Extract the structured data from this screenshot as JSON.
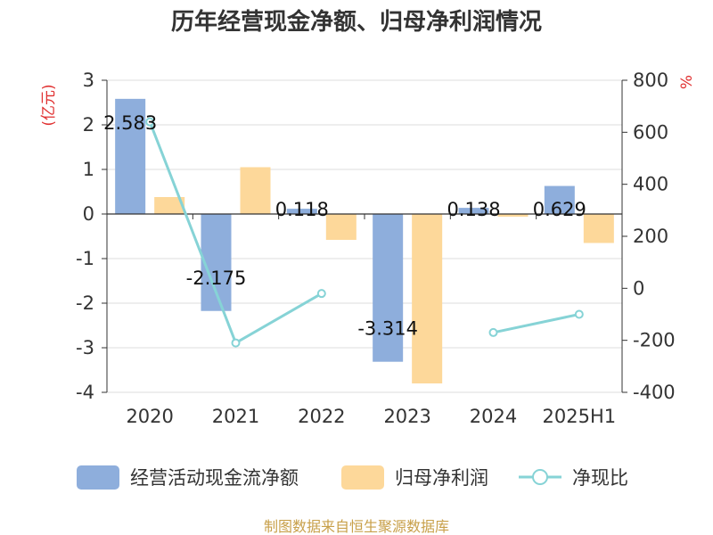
{
  "chart_data": {
    "type": "bar",
    "title": "历年经营现金净额、归母净利润情况",
    "categories": [
      "2020",
      "2021",
      "2022",
      "2023",
      "2024",
      "2025H1"
    ],
    "y_left": {
      "unit": "(亿元)",
      "ylim": [
        -4,
        3
      ],
      "ticks": [
        "3",
        "2",
        "1",
        "0",
        "-1",
        "-2",
        "-3",
        "-4"
      ]
    },
    "y_right": {
      "unit": "%",
      "ylim": [
        -400,
        800
      ],
      "ticks": [
        "800",
        "600",
        "400",
        "200",
        "0",
        "-200",
        "-400"
      ]
    },
    "series": [
      {
        "name": "经营活动现金流净额",
        "type": "bar",
        "axis": "left",
        "color": "#8eaedc",
        "values": [
          2.583,
          -2.175,
          0.118,
          -3.314,
          0.138,
          0.629
        ],
        "labels": [
          "2.583",
          "-2.175",
          "0.118",
          "-3.314",
          "0.138",
          "0.629"
        ]
      },
      {
        "name": "归母净利润",
        "type": "bar",
        "axis": "left",
        "color": "#fdd89a",
        "values": [
          0.38,
          1.05,
          -0.58,
          -3.8,
          -0.06,
          -0.65
        ]
      },
      {
        "name": "净现比",
        "type": "line",
        "axis": "right",
        "color": "#86d3d6",
        "values": [
          640,
          -210,
          -20,
          null,
          -170,
          -100
        ]
      }
    ],
    "grid": true,
    "legend_position": "bottom"
  },
  "footer": {
    "source": "制图数据来自恒生聚源数据库",
    "source_color": "#c8a04a"
  },
  "colors": {
    "unit_label": "#e03030",
    "axis": "#333333",
    "grid": "#dddddd"
  }
}
